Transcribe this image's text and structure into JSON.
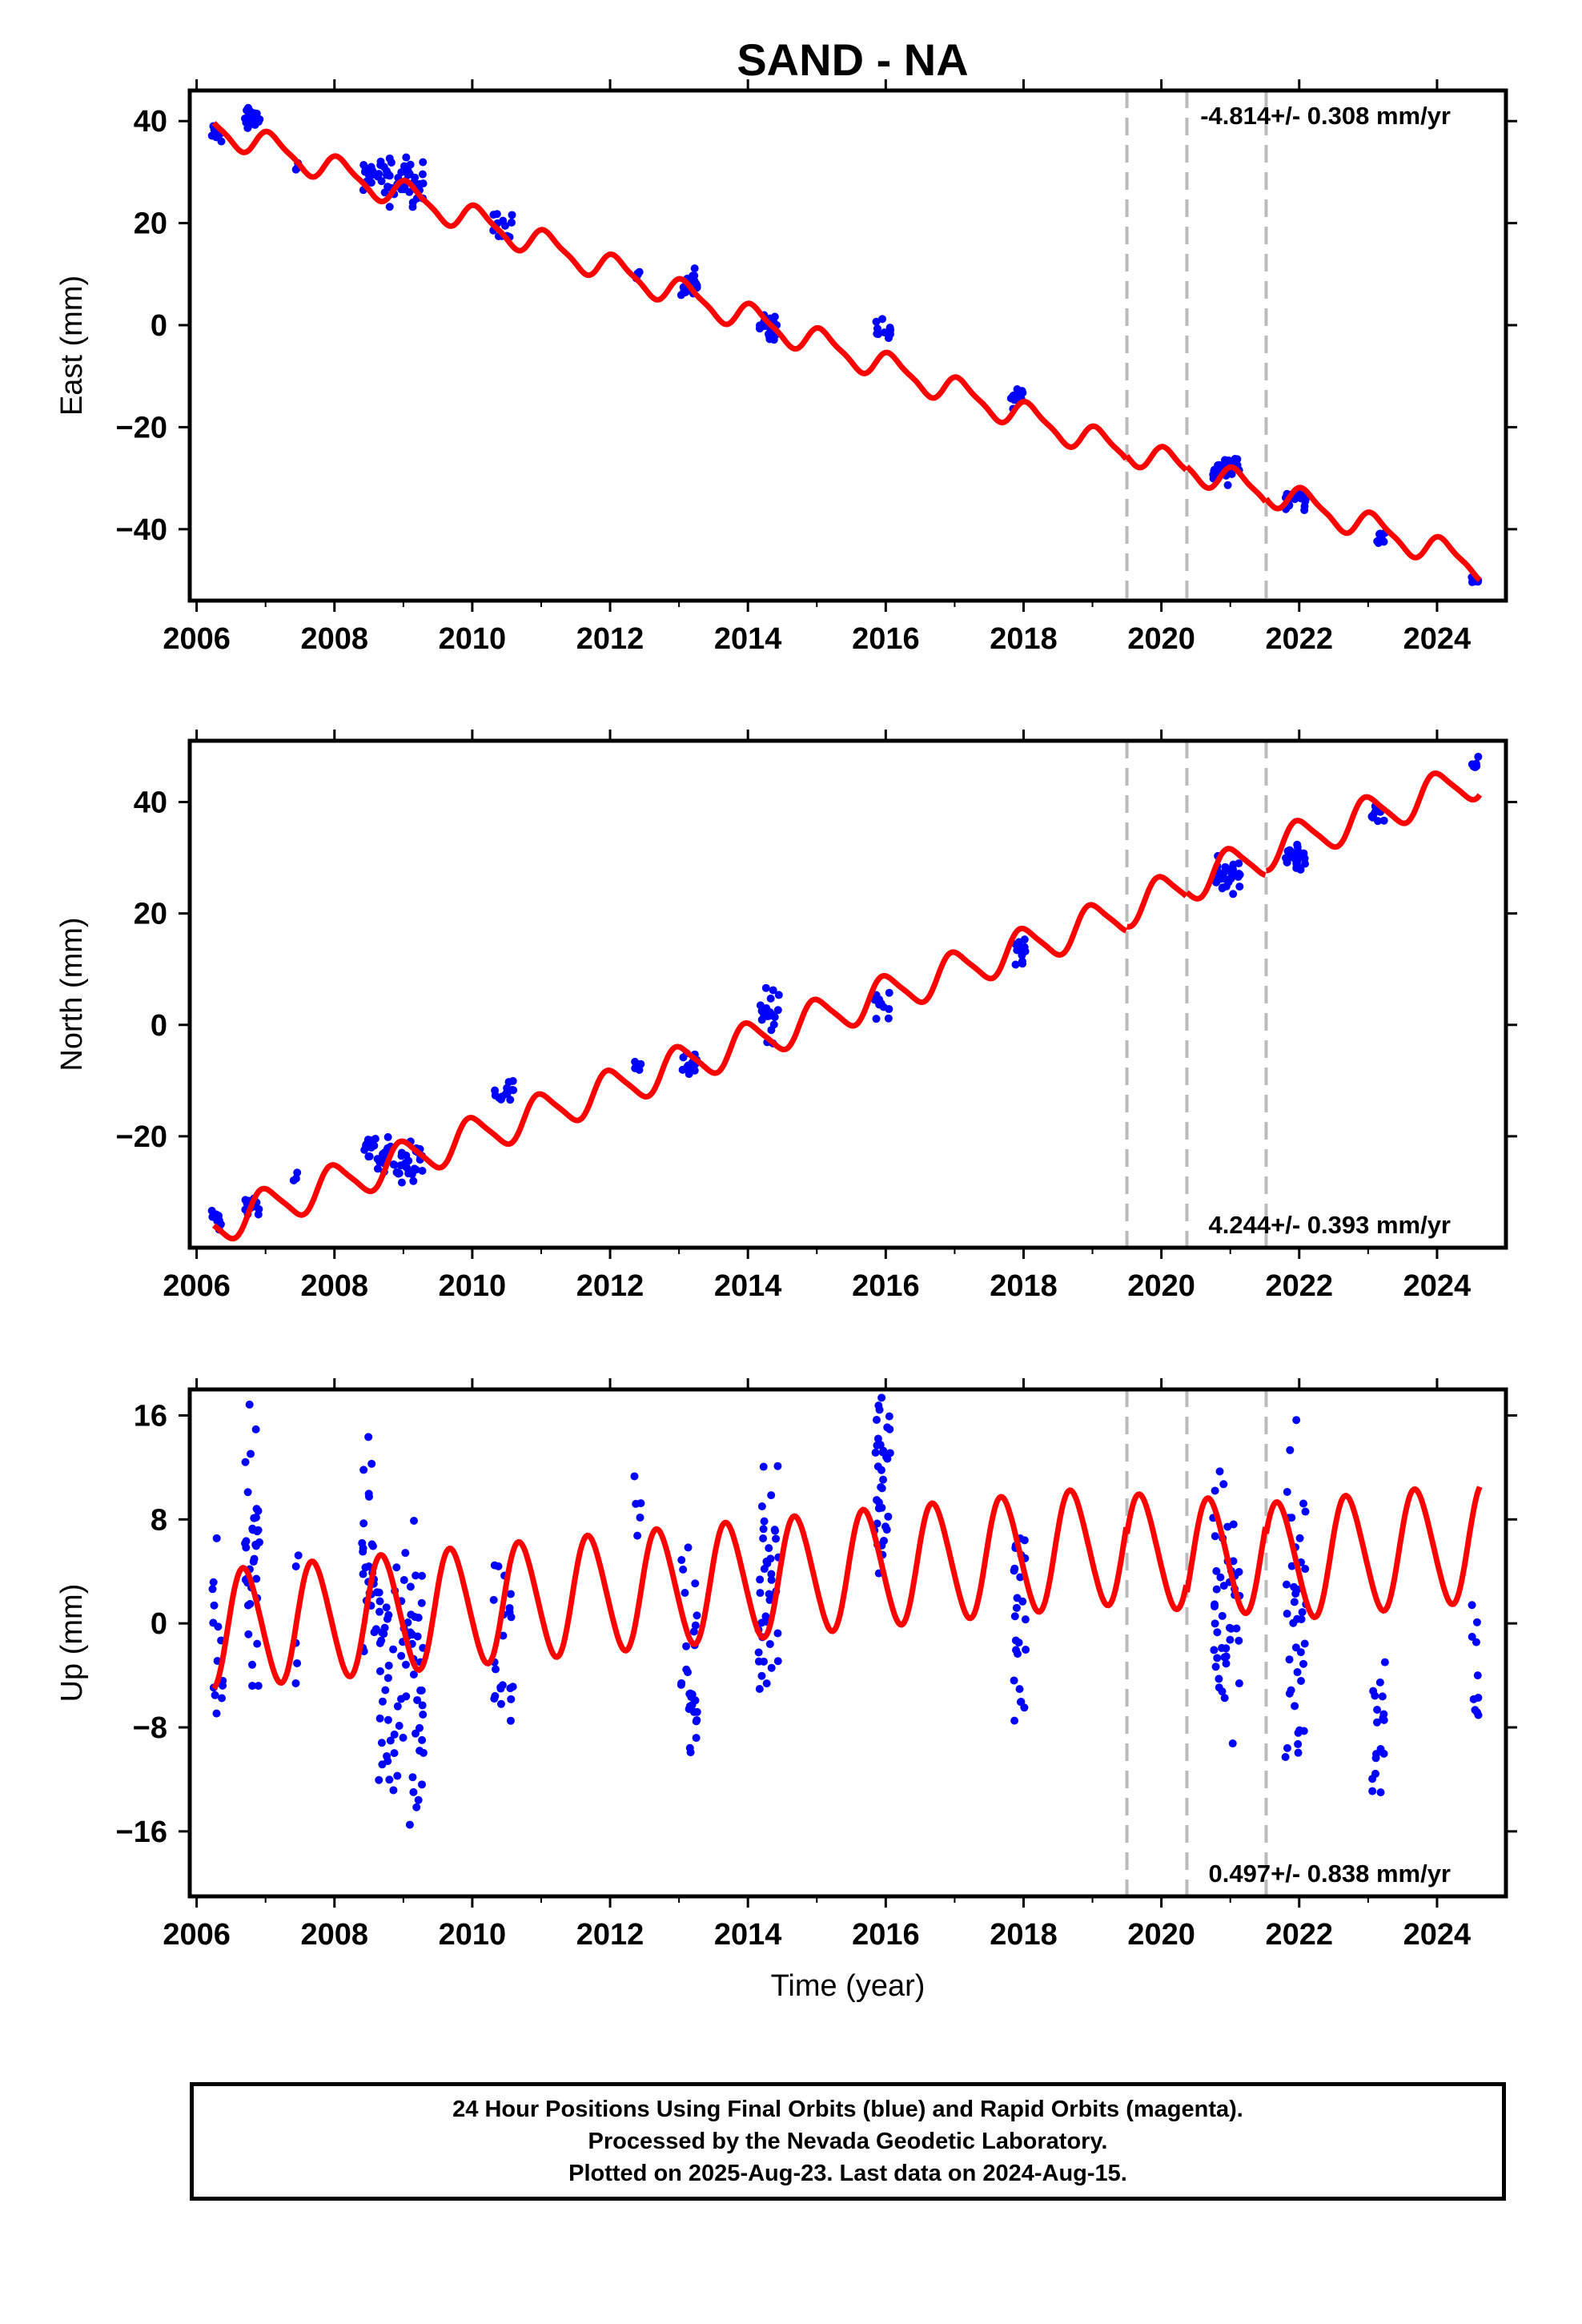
{
  "title": "SAND - NA",
  "footer": {
    "line1": "24 Hour Positions Using Final Orbits (blue) and Rapid Orbits (magenta).",
    "line2": "Processed by the Nevada Geodetic Laboratory.",
    "line3": "Plotted on 2025-Aug-23. Last data on 2024-Aug-15."
  },
  "colors": {
    "data": "#0000ff",
    "model": "#ff0000",
    "breaks": "#bbbbbb",
    "frame": "#000000"
  },
  "chart_data": [
    {
      "type": "scatter",
      "id": "east",
      "ylabel": "East (mm)",
      "xlabel": "",
      "rate_label": "-4.814+/- 0.308 mm/yr",
      "rate_position": "top-right",
      "xlim": [
        2005.9,
        2025.0
      ],
      "ylim": [
        -54,
        46
      ],
      "xticks": [
        "2006",
        "2008",
        "2010",
        "2012",
        "2014",
        "2016",
        "2018",
        "2020",
        "2022",
        "2024"
      ],
      "yticks": [
        "40",
        "20",
        "0",
        "−20",
        "−40"
      ],
      "ytick_values": [
        40,
        20,
        0,
        -20,
        -40
      ],
      "breaks": [
        2019.5,
        2020.37,
        2021.52
      ],
      "model": {
        "intercept": 38.8,
        "rate": -4.814,
        "annual_amp": 2.6,
        "annual_phase": 0.15,
        "semi_amp": 0.7,
        "start": 2006.25,
        "end": 2024.62
      },
      "clusters": [
        {
          "center": 2006.3,
          "width": 0.1,
          "mean": 37,
          "spread": 3,
          "n": 8
        },
        {
          "center": 2006.8,
          "width": 0.12,
          "mean": 40.5,
          "spread": 4,
          "n": 20
        },
        {
          "center": 2007.45,
          "width": 0.05,
          "mean": 31,
          "spread": 1,
          "n": 3
        },
        {
          "center": 2008.5,
          "width": 0.1,
          "mean": 29.5,
          "spread": 4,
          "n": 12
        },
        {
          "center": 2008.95,
          "width": 0.35,
          "mean": 28,
          "spread": 7,
          "n": 45
        },
        {
          "center": 2010.45,
          "width": 0.15,
          "mean": 20,
          "spread": 4,
          "n": 14
        },
        {
          "center": 2012.4,
          "width": 0.05,
          "mean": 10,
          "spread": 3,
          "n": 4
        },
        {
          "center": 2013.15,
          "width": 0.12,
          "mean": 8,
          "spread": 5,
          "n": 18
        },
        {
          "center": 2014.3,
          "width": 0.15,
          "mean": -0.5,
          "spread": 4,
          "n": 22
        },
        {
          "center": 2015.95,
          "width": 0.12,
          "mean": -2,
          "spread": 4,
          "n": 12
        },
        {
          "center": 2017.9,
          "width": 0.1,
          "mean": -14,
          "spread": 3,
          "n": 12
        },
        {
          "center": 2020.95,
          "width": 0.2,
          "mean": -28,
          "spread": 4,
          "n": 30
        },
        {
          "center": 2021.95,
          "width": 0.15,
          "mean": -34,
          "spread": 3,
          "n": 25
        },
        {
          "center": 2023.15,
          "width": 0.1,
          "mean": -42,
          "spread": 2,
          "n": 8
        },
        {
          "center": 2024.55,
          "width": 0.05,
          "mean": -50,
          "spread": 2,
          "n": 6
        }
      ]
    },
    {
      "type": "scatter",
      "id": "north",
      "ylabel": "North (mm)",
      "xlabel": "",
      "rate_label": "4.244+/- 0.393 mm/yr",
      "rate_position": "bottom-right",
      "xlim": [
        2005.9,
        2025.0
      ],
      "ylim": [
        -40,
        51
      ],
      "xticks": [
        "2006",
        "2008",
        "2010",
        "2012",
        "2014",
        "2016",
        "2018",
        "2020",
        "2022",
        "2024"
      ],
      "yticks": [
        "40",
        "20",
        "0",
        "−20"
      ],
      "ytick_values": [
        40,
        20,
        0,
        -20
      ],
      "breaks": [
        2019.5,
        2020.37,
        2021.52
      ],
      "model": {
        "intercept": -36,
        "rate": 4.244,
        "annual_amp": 3.4,
        "annual_phase": 0.25,
        "semi_amp": 0.6,
        "start": 2006.25,
        "end": 2024.62
      },
      "clusters": [
        {
          "center": 2006.3,
          "width": 0.08,
          "mean": -35,
          "spread": 3,
          "n": 8
        },
        {
          "center": 2006.8,
          "width": 0.12,
          "mean": -32.5,
          "spread": 3,
          "n": 15
        },
        {
          "center": 2007.45,
          "width": 0.05,
          "mean": -27,
          "spread": 1.5,
          "n": 3
        },
        {
          "center": 2008.5,
          "width": 0.1,
          "mean": -22,
          "spread": 3,
          "n": 12
        },
        {
          "center": 2008.95,
          "width": 0.35,
          "mean": -24,
          "spread": 5,
          "n": 45
        },
        {
          "center": 2010.45,
          "width": 0.15,
          "mean": -12,
          "spread": 3,
          "n": 14
        },
        {
          "center": 2012.4,
          "width": 0.05,
          "mean": -7,
          "spread": 3,
          "n": 4
        },
        {
          "center": 2013.15,
          "width": 0.12,
          "mean": -7,
          "spread": 3,
          "n": 18
        },
        {
          "center": 2014.3,
          "width": 0.15,
          "mean": 2,
          "spread": 7,
          "n": 22
        },
        {
          "center": 2015.95,
          "width": 0.12,
          "mean": 4,
          "spread": 4,
          "n": 12
        },
        {
          "center": 2017.95,
          "width": 0.1,
          "mean": 13,
          "spread": 3,
          "n": 12
        },
        {
          "center": 2020.95,
          "width": 0.2,
          "mean": 27,
          "spread": 5,
          "n": 30
        },
        {
          "center": 2021.95,
          "width": 0.15,
          "mean": 30,
          "spread": 3,
          "n": 25
        },
        {
          "center": 2023.15,
          "width": 0.1,
          "mean": 37,
          "spread": 3,
          "n": 8
        },
        {
          "center": 2024.55,
          "width": 0.05,
          "mean": 47,
          "spread": 2,
          "n": 6
        }
      ]
    },
    {
      "type": "scatter",
      "id": "up",
      "ylabel": "Up (mm)",
      "xlabel": "Time (year)",
      "rate_label": "0.497+/- 0.838 mm/yr",
      "rate_position": "bottom-right",
      "xlim": [
        2005.9,
        2025.0
      ],
      "ylim": [
        -21,
        18
      ],
      "xticks": [
        "2006",
        "2008",
        "2010",
        "2012",
        "2014",
        "2016",
        "2018",
        "2020",
        "2022",
        "2024"
      ],
      "yticks": [
        "16",
        "8",
        "0",
        "−8",
        "−16"
      ],
      "ytick_values": [
        16,
        8,
        0,
        -8,
        -16
      ],
      "breaks": [
        2019.5,
        2020.37,
        2021.52
      ],
      "model": {
        "intercept": -0.5,
        "rate": 0.497,
        "annual_amp": 4.5,
        "annual_phase": 0.55,
        "semi_amp": 0.4,
        "start": 2006.25,
        "end": 2024.62
      },
      "clusters": [
        {
          "center": 2006.3,
          "width": 0.08,
          "mean": -1,
          "spread": 11,
          "n": 14
        },
        {
          "center": 2006.8,
          "width": 0.12,
          "mean": 6,
          "spread": 15,
          "n": 35
        },
        {
          "center": 2007.45,
          "width": 0.05,
          "mean": -2,
          "spread": 11,
          "n": 5
        },
        {
          "center": 2008.5,
          "width": 0.1,
          "mean": 4,
          "spread": 12,
          "n": 25
        },
        {
          "center": 2008.95,
          "width": 0.35,
          "mean": -5,
          "spread": 17,
          "n": 80
        },
        {
          "center": 2010.45,
          "width": 0.15,
          "mean": -3,
          "spread": 10,
          "n": 22
        },
        {
          "center": 2012.4,
          "width": 0.05,
          "mean": 7,
          "spread": 8,
          "n": 5
        },
        {
          "center": 2013.15,
          "width": 0.12,
          "mean": -4,
          "spread": 15,
          "n": 30
        },
        {
          "center": 2014.3,
          "width": 0.15,
          "mean": 2,
          "spread": 15,
          "n": 40
        },
        {
          "center": 2015.95,
          "width": 0.12,
          "mean": 11,
          "spread": 12,
          "n": 35
        },
        {
          "center": 2017.95,
          "width": 0.1,
          "mean": 0,
          "spread": 12,
          "n": 25
        },
        {
          "center": 2020.95,
          "width": 0.2,
          "mean": 1,
          "spread": 15,
          "n": 45
        },
        {
          "center": 2021.95,
          "width": 0.15,
          "mean": 0,
          "spread": 18,
          "n": 40
        },
        {
          "center": 2023.15,
          "width": 0.1,
          "mean": -8,
          "spread": 12,
          "n": 18
        },
        {
          "center": 2024.55,
          "width": 0.05,
          "mean": -3,
          "spread": 12,
          "n": 10
        }
      ]
    }
  ]
}
